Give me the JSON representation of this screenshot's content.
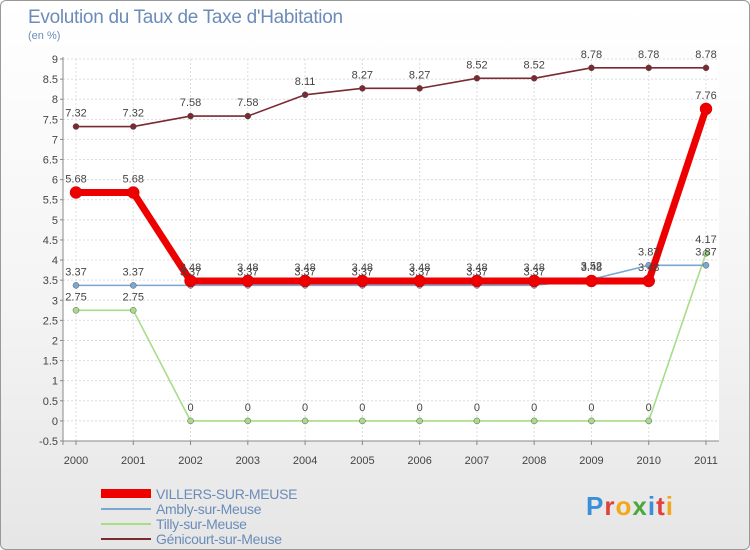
{
  "title": "Evolution du Taux de Taxe d'Habitation",
  "subtitle": "(en %)",
  "logo": {
    "text": "Proxiti",
    "colors": [
      "#3a8fd8",
      "#e0413a",
      "#f3a71a",
      "#4aa83c",
      "#3a8fd8",
      "#e0413a",
      "#f3a71a"
    ]
  },
  "chart_data": {
    "type": "line",
    "title": "Evolution du Taux de Taxe d'Habitation",
    "ylabel": "(en %)",
    "xlabel": "",
    "x": [
      "2000",
      "2001",
      "2002",
      "2003",
      "2004",
      "2005",
      "2006",
      "2007",
      "2008",
      "2009",
      "2010",
      "2011"
    ],
    "ylim": [
      -0.5,
      9
    ],
    "yticks": [
      "-0.5",
      "0",
      "0.5",
      "1",
      "1.5",
      "2",
      "2.5",
      "3",
      "3.5",
      "4",
      "4.5",
      "5",
      "5.5",
      "6",
      "6.5",
      "7",
      "7.5",
      "8",
      "8.5",
      "9"
    ],
    "ytick_values": [
      -0.5,
      0,
      0.5,
      1,
      1.5,
      2,
      2.5,
      3,
      3.5,
      4,
      4.5,
      5,
      5.5,
      6,
      6.5,
      7,
      7.5,
      8,
      8.5,
      9
    ],
    "grid": true,
    "series": [
      {
        "name": "Génicourt-sur-Meuse",
        "color": "#7a2a30",
        "values": [
          7.32,
          7.32,
          7.58,
          7.58,
          8.11,
          8.27,
          8.27,
          8.52,
          8.52,
          8.78,
          8.78,
          8.78
        ],
        "labels": [
          "7.32",
          "7.32",
          "7.58",
          "7.58",
          "8.11",
          "8.27",
          "8.27",
          "8.52",
          "8.52",
          "8.78",
          "8.78",
          "8.78"
        ]
      },
      {
        "name": "Tilly-sur-Meuse",
        "color": "#a8dc88",
        "values": [
          2.75,
          2.75,
          0,
          0,
          0,
          0,
          0,
          0,
          0,
          0,
          0,
          4.17
        ],
        "labels": [
          "2.75",
          "2.75",
          "0",
          "0",
          "0",
          "0",
          "0",
          "0",
          "0",
          "0",
          "0",
          "4.17"
        ]
      },
      {
        "name": "Ambly-sur-Meuse",
        "color": "#7aa8d0",
        "values": [
          3.37,
          3.37,
          3.37,
          3.37,
          3.37,
          3.37,
          3.37,
          3.37,
          3.37,
          3.52,
          3.87,
          3.87
        ],
        "labels": [
          "3.37",
          "3.37",
          "3.37",
          "3.37",
          "3.37",
          "3.37",
          "3.37",
          "3.37",
          "3.37",
          "3.52",
          "3.87",
          "3.87"
        ]
      },
      {
        "name": "VILLERS-SUR-MEUSE",
        "color": "#ee0000",
        "values": [
          5.68,
          5.68,
          3.48,
          3.48,
          3.48,
          3.48,
          3.48,
          3.48,
          3.48,
          3.48,
          3.48,
          7.76
        ],
        "labels": [
          "5.68",
          "5.68",
          "3.48",
          "3.48",
          "3.48",
          "3.48",
          "3.48",
          "3.48",
          "3.48",
          "3.48",
          "3.48",
          "7.76"
        ]
      }
    ],
    "legend": {
      "placement": "bottom-left",
      "items": [
        {
          "label": "VILLERS-SUR-MEUSE",
          "color": "#ee0000"
        },
        {
          "label": "Ambly-sur-Meuse",
          "color": "#7aa8d0"
        },
        {
          "label": "Tilly-sur-Meuse",
          "color": "#a8dc88"
        },
        {
          "label": "Génicourt-sur-Meuse",
          "color": "#7a2a30"
        }
      ]
    }
  }
}
